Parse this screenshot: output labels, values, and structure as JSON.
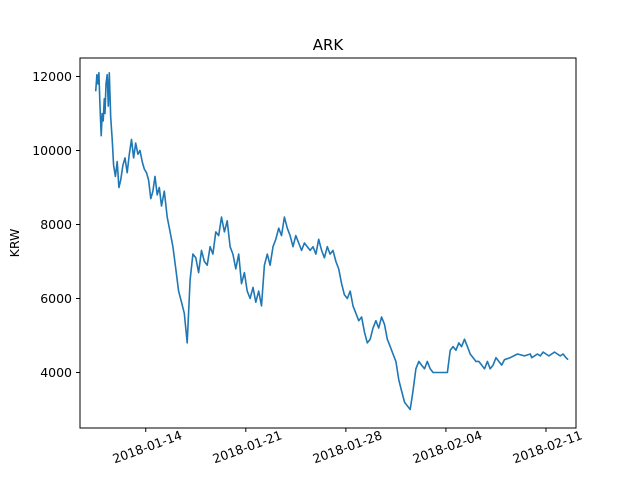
{
  "chart_data": {
    "type": "line",
    "title": "ARK",
    "xlabel": "",
    "ylabel": "KRW",
    "x_range_days": [
      -4.6,
      30.1
    ],
    "ylim": [
      2500,
      12500
    ],
    "grid": false,
    "legend": "none",
    "x_ticks": [
      {
        "day": 0,
        "label": "2018-01-14"
      },
      {
        "day": 7,
        "label": "2018-01-21"
      },
      {
        "day": 14,
        "label": "2018-01-28"
      },
      {
        "day": 21,
        "label": "2018-02-04"
      },
      {
        "day": 28,
        "label": "2018-02-11"
      }
    ],
    "y_ticks": [
      {
        "value": 4000,
        "label": "4000"
      },
      {
        "value": 6000,
        "label": "6000"
      },
      {
        "value": 8000,
        "label": "8000"
      },
      {
        "value": 10000,
        "label": "10000"
      },
      {
        "value": 12000,
        "label": "12000"
      }
    ],
    "series": [
      {
        "name": "ARK",
        "color": "#1f77b4",
        "x_days": [
          -3.5,
          -3.42,
          -3.35,
          -3.28,
          -3.2,
          -3.12,
          -3.05,
          -2.98,
          -2.9,
          -2.85,
          -2.78,
          -2.7,
          -2.62,
          -2.55,
          -2.45,
          -2.35,
          -2.25,
          -2.12,
          -2.0,
          -1.88,
          -1.75,
          -1.6,
          -1.45,
          -1.3,
          -1.15,
          -1.0,
          -0.85,
          -0.7,
          -0.55,
          -0.4,
          -0.25,
          -0.1,
          0.05,
          0.2,
          0.35,
          0.5,
          0.65,
          0.8,
          0.95,
          1.1,
          1.3,
          1.5,
          1.7,
          1.9,
          2.1,
          2.3,
          2.5,
          2.7,
          2.9,
          3.1,
          3.3,
          3.5,
          3.7,
          3.9,
          4.1,
          4.3,
          4.5,
          4.7,
          4.9,
          5.1,
          5.3,
          5.5,
          5.7,
          5.9,
          6.1,
          6.3,
          6.5,
          6.7,
          6.9,
          7.1,
          7.3,
          7.5,
          7.7,
          7.9,
          8.1,
          8.3,
          8.5,
          8.7,
          8.9,
          9.1,
          9.3,
          9.5,
          9.7,
          9.9,
          10.1,
          10.3,
          10.5,
          10.7,
          10.9,
          11.1,
          11.3,
          11.5,
          11.7,
          11.9,
          12.1,
          12.3,
          12.5,
          12.7,
          12.9,
          13.1,
          13.3,
          13.5,
          13.7,
          13.9,
          14.1,
          14.3,
          14.5,
          14.7,
          14.9,
          15.1,
          15.3,
          15.5,
          15.7,
          15.9,
          16.1,
          16.3,
          16.5,
          16.7,
          16.9,
          17.1,
          17.3,
          17.5,
          17.7,
          17.9,
          18.1,
          18.3,
          18.5,
          18.7,
          18.9,
          19.1,
          19.3,
          19.5,
          19.7,
          19.9,
          20.1,
          20.3,
          20.5,
          20.7,
          20.9,
          21.1,
          21.3,
          21.5,
          21.7,
          21.9,
          22.1,
          22.3,
          22.5,
          22.7,
          22.9,
          23.1,
          23.3,
          23.5,
          23.7,
          23.9,
          24.1,
          24.3,
          24.5,
          24.7,
          24.9,
          25.1,
          25.5,
          26.0,
          26.5,
          26.9,
          27.0,
          27.2,
          27.4,
          27.6,
          27.8,
          28.0,
          28.2,
          28.4,
          28.6,
          28.8,
          29.0,
          29.2,
          29.4,
          29.55
        ],
        "values": [
          11600,
          12050,
          11800,
          12100,
          11200,
          10400,
          11000,
          10800,
          11400,
          11000,
          11800,
          12050,
          11200,
          12100,
          10900,
          10300,
          9600,
          9300,
          9700,
          9000,
          9200,
          9600,
          9800,
          9400,
          9900,
          10300,
          9800,
          10200,
          9900,
          10000,
          9700,
          9500,
          9400,
          9200,
          8700,
          8900,
          9300,
          8800,
          9000,
          8500,
          8900,
          8200,
          7800,
          7400,
          6800,
          6200,
          5900,
          5600,
          4800,
          6500,
          7200,
          7100,
          6700,
          7300,
          7000,
          6900,
          7400,
          7200,
          7800,
          7700,
          8200,
          7800,
          8100,
          7400,
          7200,
          6800,
          7200,
          6400,
          6700,
          6200,
          6000,
          6300,
          5900,
          6200,
          5800,
          6900,
          7200,
          6900,
          7400,
          7600,
          7900,
          7700,
          8200,
          7900,
          7700,
          7400,
          7700,
          7500,
          7300,
          7500,
          7400,
          7300,
          7400,
          7200,
          7600,
          7300,
          7100,
          7400,
          7200,
          7300,
          7000,
          6800,
          6400,
          6100,
          6000,
          6200,
          5800,
          5600,
          5400,
          5500,
          5100,
          4800,
          4900,
          5200,
          5400,
          5200,
          5500,
          5300,
          4900,
          4700,
          4500,
          4300,
          3800,
          3500,
          3200,
          3100,
          3000,
          3500,
          4100,
          4300,
          4200,
          4100,
          4300,
          4100,
          4000,
          4000,
          4000,
          4000,
          4000,
          4000,
          4600,
          4700,
          4600,
          4800,
          4700,
          4900,
          4700,
          4500,
          4400,
          4300,
          4300,
          4200,
          4100,
          4300,
          4100,
          4200,
          4400,
          4300,
          4200,
          4350,
          4400,
          4500,
          4450,
          4500,
          4400,
          4450,
          4500,
          4450,
          4550,
          4500,
          4450,
          4500,
          4550,
          4500,
          4450,
          4500,
          4400,
          4350
        ]
      }
    ]
  }
}
